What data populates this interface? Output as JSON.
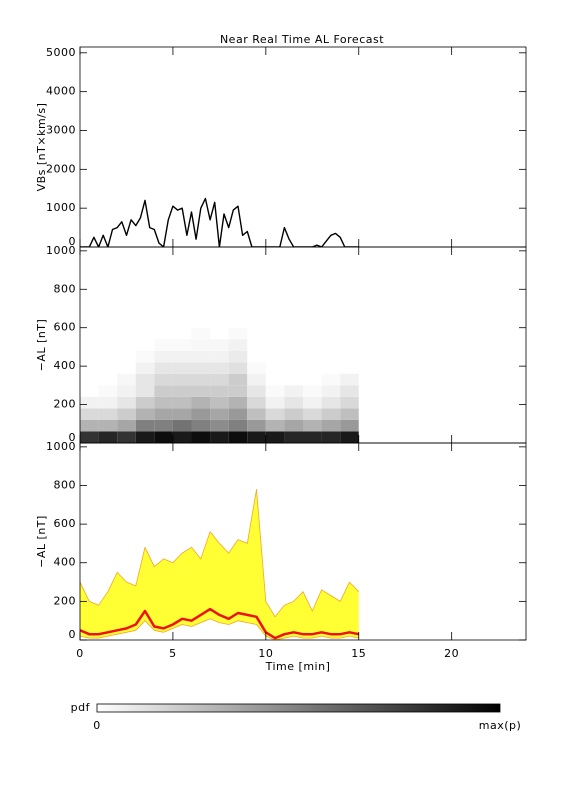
{
  "chart_data": [
    {
      "type": "line",
      "title": "Near Real Time AL Forecast",
      "ylabel": "VBs [nT×km/s]",
      "xlim": [
        0,
        24
      ],
      "xticks": [
        0,
        5,
        10,
        15,
        20
      ],
      "ylim": [
        0,
        5150
      ],
      "yticks": [
        0,
        1000,
        2000,
        3000,
        4000,
        5000
      ],
      "show_xtick_labels": false,
      "color": "#000000",
      "x": [
        0,
        0.25,
        0.5,
        0.75,
        1,
        1.25,
        1.5,
        1.75,
        2,
        2.25,
        2.5,
        2.75,
        3,
        3.25,
        3.5,
        3.75,
        4,
        4.25,
        4.5,
        4.75,
        5,
        5.25,
        5.5,
        5.75,
        6,
        6.25,
        6.5,
        6.75,
        7,
        7.25,
        7.5,
        7.75,
        8,
        8.25,
        8.5,
        8.75,
        9,
        9.25,
        9.5,
        9.75,
        10,
        10.25,
        10.5,
        10.75,
        11,
        11.25,
        11.5,
        11.75,
        12,
        12.25,
        12.5,
        12.75,
        13,
        13.25,
        13.5,
        13.75,
        14,
        14.25,
        14.5,
        14.75,
        15
      ],
      "values": [
        0,
        0,
        0,
        250,
        0,
        300,
        0,
        450,
        500,
        650,
        300,
        700,
        550,
        750,
        1200,
        500,
        450,
        100,
        0,
        700,
        1050,
        950,
        1000,
        300,
        900,
        200,
        1000,
        1250,
        700,
        1150,
        0,
        850,
        500,
        950,
        1050,
        300,
        400,
        0,
        0,
        0,
        0,
        0,
        0,
        0,
        500,
        200,
        0,
        0,
        0,
        0,
        0,
        50,
        0,
        150,
        300,
        350,
        250,
        0,
        0,
        0,
        0
      ]
    },
    {
      "type": "heatmap",
      "ylabel": "−AL [nT]",
      "xlim": [
        0,
        24
      ],
      "xticks": [
        0,
        5,
        10,
        15,
        20
      ],
      "ylim": [
        0,
        1020
      ],
      "yticks": [
        0,
        200,
        400,
        600,
        800,
        1000
      ],
      "show_xtick_labels": false,
      "x_edges": [
        0,
        1,
        2,
        3,
        4,
        5,
        6,
        7,
        8,
        9,
        10,
        11,
        12,
        13,
        14,
        15
      ],
      "y_edges": [
        0,
        60,
        120,
        180,
        240,
        300,
        360,
        420,
        480,
        540,
        600
      ],
      "z": [
        [
          0.8,
          0.3,
          0.15,
          0.05,
          0,
          0,
          0,
          0,
          0,
          0
        ],
        [
          0.85,
          0.3,
          0.15,
          0.05,
          0.02,
          0,
          0,
          0,
          0,
          0
        ],
        [
          0.8,
          0.35,
          0.2,
          0.1,
          0.05,
          0.03,
          0,
          0,
          0,
          0
        ],
        [
          0.9,
          0.5,
          0.3,
          0.2,
          0.1,
          0.1,
          0.05,
          0.02,
          0,
          0
        ],
        [
          0.95,
          0.5,
          0.35,
          0.25,
          0.2,
          0.15,
          0.1,
          0.05,
          0.02,
          0
        ],
        [
          0.9,
          0.55,
          0.35,
          0.25,
          0.2,
          0.15,
          0.1,
          0.05,
          0.02,
          0
        ],
        [
          0.95,
          0.5,
          0.4,
          0.3,
          0.2,
          0.15,
          0.1,
          0.05,
          0.03,
          0.02
        ],
        [
          0.9,
          0.45,
          0.35,
          0.25,
          0.2,
          0.15,
          0.1,
          0.05,
          0.03,
          0
        ],
        [
          0.95,
          0.5,
          0.4,
          0.3,
          0.2,
          0.2,
          0.12,
          0.08,
          0.05,
          0.02
        ],
        [
          0.9,
          0.4,
          0.25,
          0.15,
          0.1,
          0.05,
          0.02,
          0,
          0,
          0
        ],
        [
          0.9,
          0.3,
          0.15,
          0.05,
          0.02,
          0,
          0,
          0,
          0,
          0
        ],
        [
          0.85,
          0.35,
          0.2,
          0.1,
          0.05,
          0,
          0,
          0,
          0,
          0
        ],
        [
          0.85,
          0.3,
          0.15,
          0.05,
          0.02,
          0,
          0,
          0,
          0,
          0
        ],
        [
          0.85,
          0.35,
          0.2,
          0.1,
          0.05,
          0.02,
          0,
          0,
          0,
          0
        ],
        [
          0.9,
          0.4,
          0.25,
          0.15,
          0.1,
          0.05,
          0,
          0,
          0,
          0
        ]
      ],
      "colorbar": {
        "label": "pdf",
        "min_label": "0",
        "max_label": "max(p)"
      }
    },
    {
      "type": "band",
      "ylabel": "−AL [nT]",
      "xlabel": "Time [min]",
      "xlim": [
        0,
        24
      ],
      "xticks": [
        0,
        5,
        10,
        15,
        20
      ],
      "ylim": [
        0,
        1020
      ],
      "yticks": [
        0,
        200,
        400,
        600,
        800,
        1000
      ],
      "show_xtick_labels": true,
      "x": [
        0,
        0.5,
        1,
        1.5,
        2,
        2.5,
        3,
        3.5,
        4,
        4.5,
        5,
        5.5,
        6,
        6.5,
        7,
        7.5,
        8,
        8.5,
        9,
        9.5,
        10,
        10.5,
        11,
        11.5,
        12,
        12.5,
        13,
        13.5,
        14,
        14.5,
        15
      ],
      "band": {
        "color": "#ffff33",
        "edge_color": "#f5a623",
        "lower": [
          20,
          10,
          10,
          20,
          30,
          40,
          50,
          100,
          50,
          40,
          60,
          80,
          70,
          90,
          110,
          90,
          80,
          100,
          90,
          80,
          20,
          0,
          10,
          20,
          10,
          10,
          20,
          10,
          10,
          20,
          10
        ],
        "upper": [
          300,
          200,
          180,
          250,
          350,
          300,
          280,
          480,
          380,
          420,
          400,
          450,
          480,
          420,
          560,
          500,
          450,
          520,
          500,
          780,
          200,
          120,
          180,
          200,
          250,
          150,
          260,
          230,
          200,
          300,
          250
        ]
      },
      "series": [
        {
          "color": "#ee1111",
          "values": [
            50,
            30,
            30,
            40,
            50,
            60,
            80,
            150,
            70,
            60,
            80,
            110,
            100,
            130,
            160,
            130,
            110,
            140,
            130,
            120,
            40,
            10,
            30,
            40,
            30,
            30,
            40,
            30,
            30,
            40,
            30
          ]
        }
      ]
    }
  ]
}
